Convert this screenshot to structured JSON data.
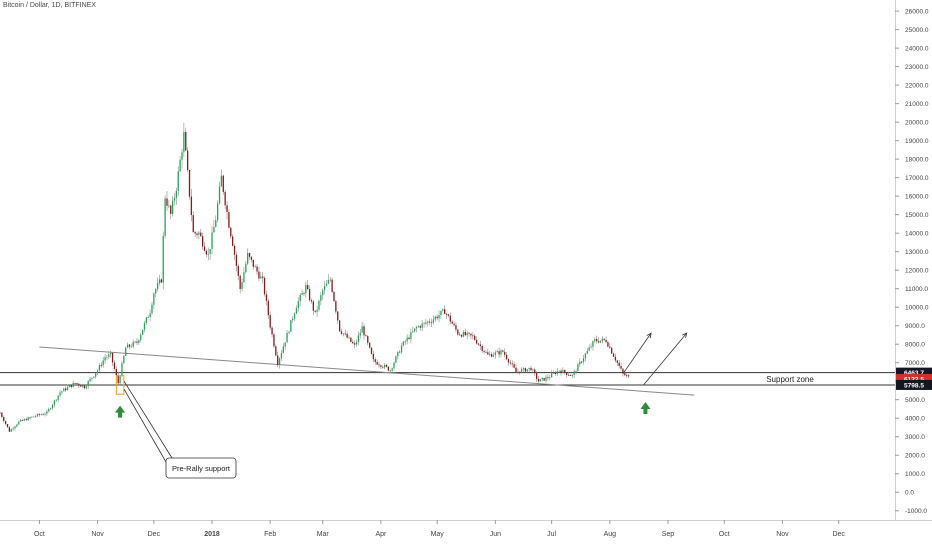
{
  "chart_data": {
    "type": "candlestick",
    "symbol_header": "Bitcoin / Dollar, 1D, BITFINEX",
    "y_axis": {
      "ticks": [
        -1000,
        0,
        1000,
        2000,
        3000,
        4000,
        5000,
        6000,
        7000,
        8000,
        9000,
        10000,
        11000,
        12000,
        13000,
        14000,
        15000,
        16000,
        17000,
        18000,
        19000,
        20000,
        21000,
        22000,
        23000,
        24000,
        25000,
        26000
      ],
      "tick_labels": [
        "-1000.0",
        "0.0",
        "1000.0",
        "2000.0",
        "3000.0",
        "4000.0",
        "5000.0",
        "6000.0",
        "7000.0",
        "8000.0",
        "9000.0",
        "10000.0",
        "11000.0",
        "12000.0",
        "13000.0",
        "14000.0",
        "15000.0",
        "16000.0",
        "17000.0",
        "18000.0",
        "19000.0",
        "20000.0",
        "21000.0",
        "22000.0",
        "23000.0",
        "24000.0",
        "25000.0",
        "26000.0"
      ],
      "ylim": [
        -1500,
        26600
      ]
    },
    "x_axis": {
      "labels": [
        "Oct",
        "Nov",
        "Dec",
        "2018",
        "Feb",
        "Mar",
        "Apr",
        "May",
        "Jun",
        "Jul",
        "Aug",
        "Sep",
        "Oct",
        "Nov",
        "Dec"
      ],
      "dates": [
        "2017-10-01",
        "2017-11-01",
        "2017-12-01",
        "2018-01-01",
        "2018-02-01",
        "2018-03-01",
        "2018-04-01",
        "2018-05-01",
        "2018-06-01",
        "2018-07-01",
        "2018-08-01",
        "2018-09-01",
        "2018-10-01",
        "2018-11-01",
        "2018-12-01"
      ],
      "xlim": [
        "2017-09-10",
        "2018-12-31"
      ]
    },
    "price_path": [
      [
        "2017-09-10",
        4300
      ],
      [
        "2017-09-15",
        3300
      ],
      [
        "2017-09-20",
        3800
      ],
      [
        "2017-09-28",
        4100
      ],
      [
        "2017-10-05",
        4300
      ],
      [
        "2017-10-12",
        5400
      ],
      [
        "2017-10-20",
        5900
      ],
      [
        "2017-10-25",
        5700
      ],
      [
        "2017-11-01",
        6600
      ],
      [
        "2017-11-05",
        7300
      ],
      [
        "2017-11-08",
        7400
      ],
      [
        "2017-11-12",
        5900
      ],
      [
        "2017-11-16",
        7800
      ],
      [
        "2017-11-22",
        8100
      ],
      [
        "2017-11-29",
        9800
      ],
      [
        "2017-12-01",
        10800
      ],
      [
        "2017-12-05",
        11500
      ],
      [
        "2017-12-07",
        16000
      ],
      [
        "2017-12-10",
        15000
      ],
      [
        "2017-12-13",
        16500
      ],
      [
        "2017-12-17",
        19300
      ],
      [
        "2017-12-22",
        14000
      ],
      [
        "2017-12-25",
        14000
      ],
      [
        "2017-12-30",
        12800
      ],
      [
        "2018-01-03",
        14800
      ],
      [
        "2018-01-06",
        17000
      ],
      [
        "2018-01-10",
        14500
      ],
      [
        "2018-01-12",
        13500
      ],
      [
        "2018-01-16",
        11000
      ],
      [
        "2018-01-20",
        12800
      ],
      [
        "2018-01-28",
        11400
      ],
      [
        "2018-02-01",
        9000
      ],
      [
        "2018-02-05",
        7000
      ],
      [
        "2018-02-10",
        8500
      ],
      [
        "2018-02-15",
        10100
      ],
      [
        "2018-02-20",
        11100
      ],
      [
        "2018-02-25",
        9600
      ],
      [
        "2018-03-01",
        10900
      ],
      [
        "2018-03-05",
        11500
      ],
      [
        "2018-03-10",
        8800
      ],
      [
        "2018-03-18",
        7900
      ],
      [
        "2018-03-22",
        8900
      ],
      [
        "2018-03-28",
        7100
      ],
      [
        "2018-04-01",
        6900
      ],
      [
        "2018-04-06",
        6600
      ],
      [
        "2018-04-12",
        7900
      ],
      [
        "2018-04-20",
        8900
      ],
      [
        "2018-04-28",
        9300
      ],
      [
        "2018-05-05",
        9800
      ],
      [
        "2018-05-12",
        8600
      ],
      [
        "2018-05-20",
        8400
      ],
      [
        "2018-05-28",
        7400
      ],
      [
        "2018-06-05",
        7600
      ],
      [
        "2018-06-12",
        6500
      ],
      [
        "2018-06-20",
        6700
      ],
      [
        "2018-06-24",
        6000
      ],
      [
        "2018-06-29",
        6200
      ],
      [
        "2018-07-05",
        6600
      ],
      [
        "2018-07-12",
        6300
      ],
      [
        "2018-07-18",
        7300
      ],
      [
        "2018-07-24",
        8200
      ],
      [
        "2018-07-30",
        8200
      ],
      [
        "2018-08-05",
        7000
      ],
      [
        "2018-08-08",
        6400
      ],
      [
        "2018-08-11",
        6200
      ]
    ],
    "annotations": {
      "support_zone": {
        "label": "Support zone",
        "top": 6463.7,
        "bottom": 5798.5
      },
      "price_labels": [
        {
          "text": "6463.7",
          "value": 6463.7,
          "color": "#131722"
        },
        {
          "text": "6122.5",
          "value": 6122.5,
          "color": "#d32f2f"
        },
        {
          "text": "5798.5",
          "value": 5798.5,
          "color": "#131722"
        }
      ],
      "trendline": {
        "from": [
          "2017-10-01",
          7850
        ],
        "to": [
          "2018-09-15",
          5250
        ]
      },
      "callout": {
        "text": "Pre-Rally support",
        "anchor": [
          "2017-11-13",
          6000
        ]
      },
      "highlight_box": {
        "x0": "2017-11-11",
        "x1": "2017-11-15",
        "y0": 5300,
        "y1": 6300
      },
      "up_arrows": [
        {
          "date": "2017-11-13",
          "value": 4300
        },
        {
          "date": "2018-08-20",
          "value": 4500
        }
      ],
      "projection_arrows": [
        {
          "from": [
            "2018-08-08",
            6400
          ],
          "to": [
            "2018-08-23",
            8600
          ]
        },
        {
          "from": [
            "2018-08-19",
            5800
          ],
          "to": [
            "2018-09-11",
            8600
          ]
        }
      ]
    },
    "colors": {
      "up": "#26a65b",
      "down": "#8b1a1a",
      "wick": "#8a8a8a",
      "highlight": "#f39c12",
      "arrow": "#2e8b3a",
      "line": "#555555"
    }
  }
}
